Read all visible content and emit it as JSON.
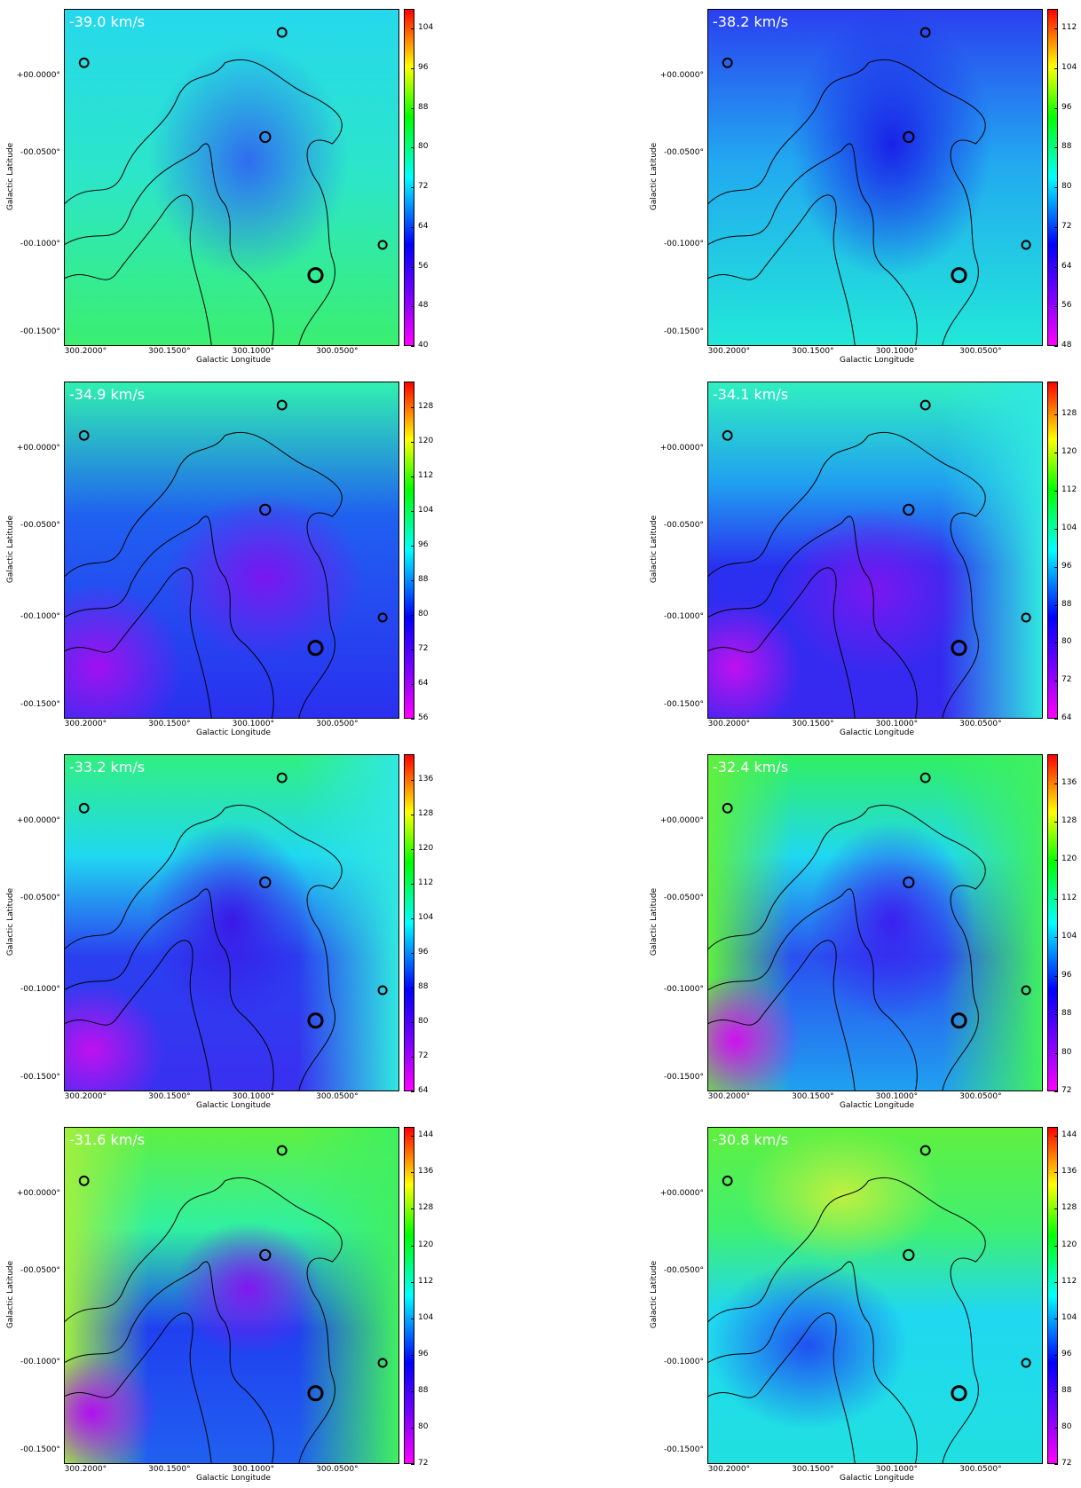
{
  "panels": [
    {
      "label": "-39.0 km/s",
      "x_label": "Galactic Longitude",
      "y_label": "Galactic Latitude",
      "xticks": [
        "300.2000°",
        "300.1500°",
        "300.1000°",
        "300.0500°"
      ],
      "yticks": [
        "+00.0000°",
        "-00.0500°",
        "-00.1000°",
        "-00.1500°"
      ],
      "colorbar": {
        "lim": [
          40,
          108
        ],
        "ticks": [
          40,
          48,
          56,
          64,
          72,
          80,
          88,
          96,
          104
        ]
      }
    },
    {
      "label": "-38.2 km/s",
      "x_label": "Galactic Longitude",
      "y_label": "Galactic Latitude",
      "xticks": [
        "300.2000°",
        "300.1500°",
        "300.1000°",
        "300.0500°"
      ],
      "yticks": [
        "+00.0000°",
        "-00.0500°",
        "-00.1000°",
        "-00.1500°"
      ],
      "colorbar": {
        "lim": [
          48,
          116
        ],
        "ticks": [
          48,
          56,
          64,
          72,
          80,
          88,
          96,
          104,
          112
        ]
      }
    },
    {
      "label": "-34.9 km/s",
      "x_label": "Galactic Longitude",
      "y_label": "Galactic Latitude",
      "xticks": [
        "300.2000°",
        "300.1500°",
        "300.1000°",
        "300.0500°"
      ],
      "yticks": [
        "+00.0000°",
        "-00.0500°",
        "-00.1000°",
        "-00.1500°"
      ],
      "colorbar": {
        "lim": [
          56,
          134
        ],
        "ticks": [
          56,
          64,
          72,
          80,
          88,
          96,
          104,
          112,
          120,
          128
        ]
      }
    },
    {
      "label": "-34.1 km/s",
      "x_label": "Galactic Longitude",
      "y_label": "Galactic Latitude",
      "xticks": [
        "300.2000°",
        "300.1500°",
        "300.1000°",
        "300.0500°"
      ],
      "yticks": [
        "+00.0000°",
        "-00.0500°",
        "-00.1000°",
        "-00.1500°"
      ],
      "colorbar": {
        "lim": [
          64,
          135
        ],
        "ticks": [
          64,
          72,
          80,
          88,
          96,
          104,
          112,
          120,
          128
        ]
      }
    },
    {
      "label": "-33.2 km/s",
      "x_label": "Galactic Longitude",
      "y_label": "Galactic Latitude",
      "xticks": [
        "300.2000°",
        "300.1500°",
        "300.1000°",
        "300.0500°"
      ],
      "yticks": [
        "+00.0000°",
        "-00.0500°",
        "-00.1000°",
        "-00.1500°"
      ],
      "colorbar": {
        "lim": [
          64,
          142
        ],
        "ticks": [
          64,
          72,
          80,
          88,
          96,
          104,
          112,
          120,
          128,
          136
        ]
      }
    },
    {
      "label": "-32.4 km/s",
      "x_label": "Galactic Longitude",
      "y_label": "Galactic Latitude",
      "xticks": [
        "300.2000°",
        "300.1500°",
        "300.1000°",
        "300.0500°"
      ],
      "yticks": [
        "+00.0000°",
        "-00.0500°",
        "-00.1000°",
        "-00.1500°"
      ],
      "colorbar": {
        "lim": [
          72,
          142
        ],
        "ticks": [
          72,
          80,
          88,
          96,
          104,
          112,
          120,
          128,
          136
        ]
      }
    },
    {
      "label": "-31.6 km/s",
      "x_label": "Galactic Longitude",
      "y_label": "Galactic Latitude",
      "xticks": [
        "300.2000°",
        "300.1500°",
        "300.1000°",
        "300.0500°"
      ],
      "yticks": [
        "+00.0000°",
        "-00.0500°",
        "-00.1000°",
        "-00.1500°"
      ],
      "colorbar": {
        "lim": [
          72,
          146
        ],
        "ticks": [
          72,
          80,
          88,
          96,
          104,
          112,
          120,
          128,
          136,
          144
        ]
      }
    },
    {
      "label": "-30.8 km/s",
      "x_label": "Galactic Longitude",
      "y_label": "Galactic Latitude",
      "xticks": [
        "300.2000°",
        "300.1500°",
        "300.1000°",
        "300.0500°"
      ],
      "yticks": [
        "+00.0000°",
        "-00.0500°",
        "-00.1000°",
        "-00.1500°"
      ],
      "colorbar": {
        "lim": [
          72,
          146
        ],
        "ticks": [
          72,
          80,
          88,
          96,
          104,
          112,
          120,
          128,
          136,
          144
        ]
      }
    }
  ]
}
